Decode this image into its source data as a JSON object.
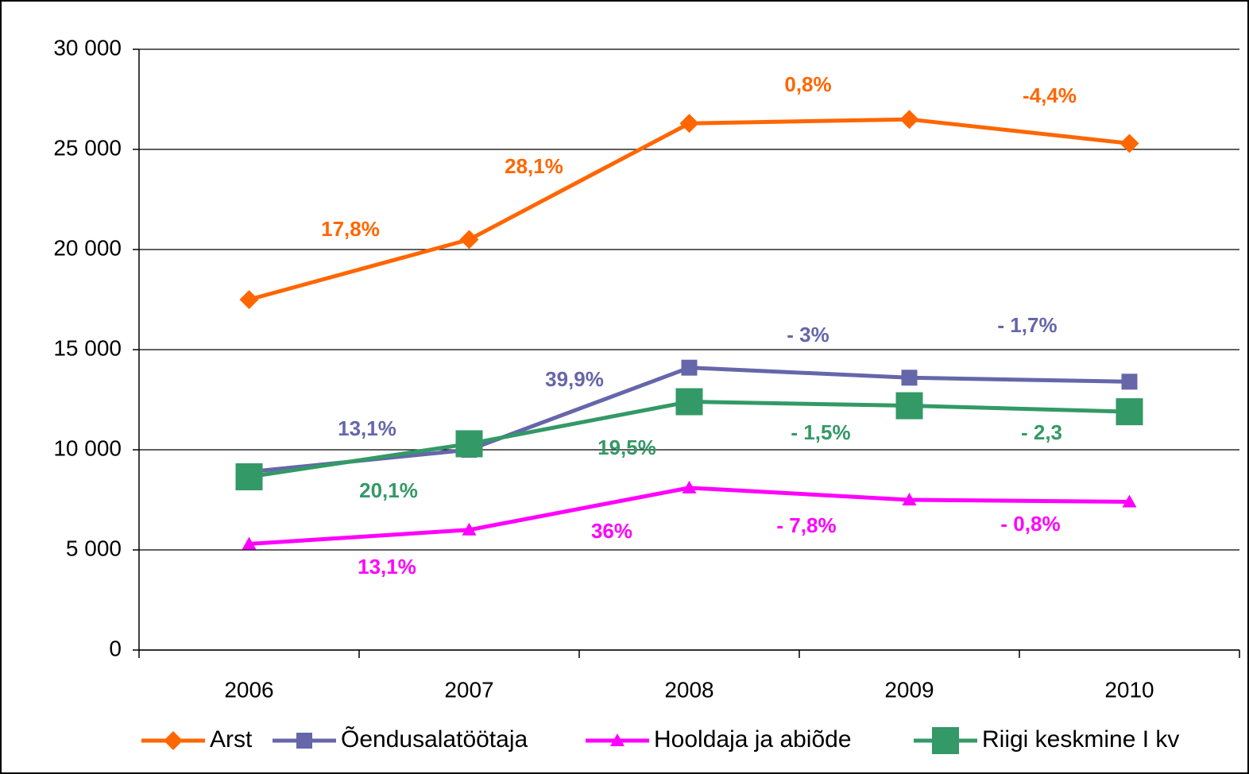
{
  "chart_data": {
    "type": "line",
    "categories": [
      "2006",
      "2007",
      "2008",
      "2009",
      "2010"
    ],
    "series": [
      {
        "name": "Arst",
        "color": "#ff6600",
        "marker": "diamond",
        "values": [
          17500,
          20500,
          26300,
          26500,
          25300
        ]
      },
      {
        "name": "Õendusalatöötaja",
        "color": "#6666aa",
        "marker": "square",
        "values": [
          8900,
          10000,
          14100,
          13600,
          13400
        ]
      },
      {
        "name": "Hooldaja ja abiõde",
        "color": "#ff00ff",
        "marker": "triangle",
        "values": [
          5300,
          6000,
          8100,
          7500,
          7400
        ]
      },
      {
        "name": "Riigi keskmine I kv",
        "color": "#339966",
        "marker": "bigsquare",
        "values": [
          8650,
          10300,
          12400,
          12200,
          11900
        ]
      }
    ],
    "annotations": [
      {
        "text": "17,8%",
        "color": "#ff6600"
      },
      {
        "text": "28,1%",
        "color": "#ff6600"
      },
      {
        "text": "0,8%",
        "color": "#ff6600"
      },
      {
        "text": "-4,4%",
        "color": "#ff6600"
      },
      {
        "text": "13,1%",
        "color": "#6666aa"
      },
      {
        "text": "39,9%",
        "color": "#6666aa"
      },
      {
        "text": "- 3%",
        "color": "#6666aa"
      },
      {
        "text": "- 1,7%",
        "color": "#6666aa"
      },
      {
        "text": "20,1%",
        "color": "#339966"
      },
      {
        "text": "19,5%",
        "color": "#339966"
      },
      {
        "text": "- 1,5%",
        "color": "#339966"
      },
      {
        "text": "- 2,3",
        "color": "#339966"
      },
      {
        "text": "13,1%",
        "color": "#ff00ff"
      },
      {
        "text": "36%",
        "color": "#ff00ff"
      },
      {
        "text": "- 7,8%",
        "color": "#ff00ff"
      },
      {
        "text": "- 0,8%",
        "color": "#ff00ff"
      }
    ],
    "ylim": [
      0,
      30000
    ],
    "yticks": [
      0,
      {
        "value": 5000,
        "label": "5 000"
      },
      {
        "value": 10000,
        "label": "10 000"
      },
      {
        "value": 15000,
        "label": "15 000"
      },
      {
        "value": 20000,
        "label": "20 000"
      },
      {
        "value": 25000,
        "label": "25 000"
      },
      {
        "value": 30000,
        "label": "30 000"
      }
    ],
    "grid": true,
    "legend": "bottom"
  }
}
